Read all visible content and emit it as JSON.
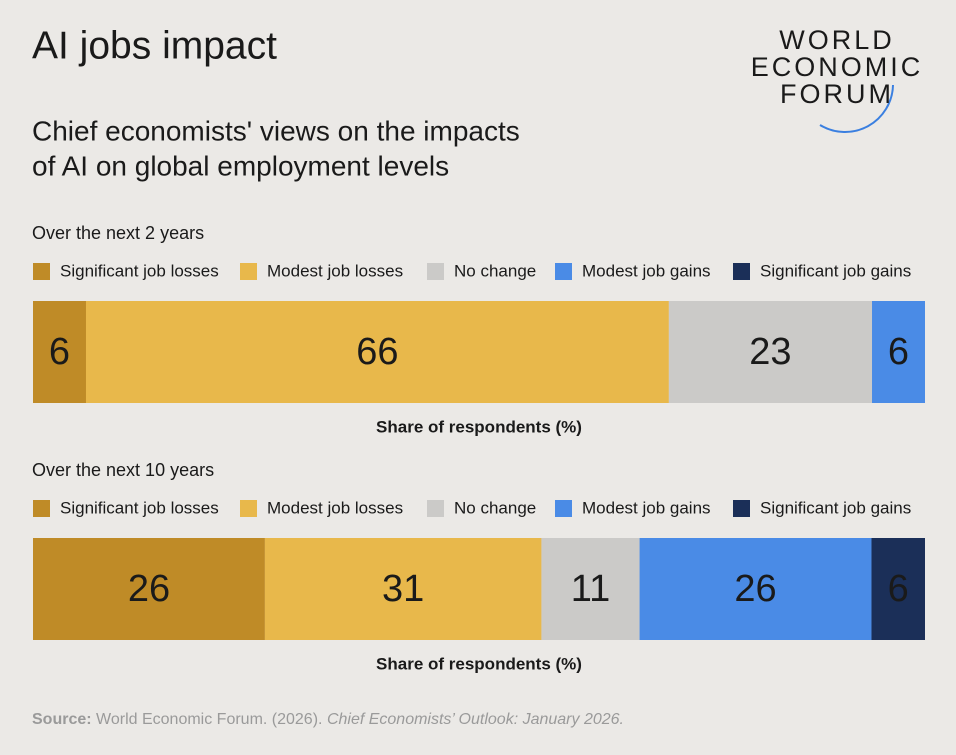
{
  "title": "AI jobs impact",
  "subtitle": [
    "Chief economists' views on the impacts",
    "of AI on global employment levels"
  ],
  "logo": [
    "WORLD",
    "ECONOMIC",
    "FORUM"
  ],
  "source": {
    "label": "Source:",
    "text": "World Economic Forum. (2026).",
    "publication": "Chief Economists’ Outlook: January 2026."
  },
  "chart_data": [
    {
      "type": "stacked-bar",
      "title": "Over the next 2 years",
      "xlabel": "Share of respondents (%)",
      "xlim": [
        0,
        101
      ],
      "series": [
        {
          "name": "Significant job losses",
          "color": "#bf8b27",
          "label_color": "#f6ead2",
          "values": [
            6
          ]
        },
        {
          "name": "Modest job losses",
          "color": "#e8b84b",
          "label_color": "#222222",
          "values": [
            66
          ]
        },
        {
          "name": "No change",
          "color": "#cbcac8",
          "label_color": "#222222",
          "values": [
            23
          ]
        },
        {
          "name": "Modest job gains",
          "color": "#4a8be6",
          "label_color": "#ffffff",
          "values": [
            6
          ]
        },
        {
          "name": "Significant job gains",
          "color": "#1b2f58",
          "label_color": "#ffffff",
          "values": [
            0
          ]
        }
      ]
    },
    {
      "type": "stacked-bar",
      "title": "Over the next 10 years",
      "xlabel": "Share of respondents (%)",
      "xlim": [
        0,
        100
      ],
      "series": [
        {
          "name": "Significant job losses",
          "color": "#bf8b27",
          "label_color": "#f6ead2",
          "values": [
            26
          ]
        },
        {
          "name": "Modest job losses",
          "color": "#e8b84b",
          "label_color": "#222222",
          "values": [
            31
          ]
        },
        {
          "name": "No change",
          "color": "#cbcac8",
          "label_color": "#222222",
          "values": [
            11
          ]
        },
        {
          "name": "Modest job gains",
          "color": "#4a8be6",
          "label_color": "#ffffff",
          "values": [
            26
          ]
        },
        {
          "name": "Significant job gains",
          "color": "#1b2f58",
          "label_color": "#ffffff",
          "values": [
            6
          ]
        }
      ]
    }
  ]
}
